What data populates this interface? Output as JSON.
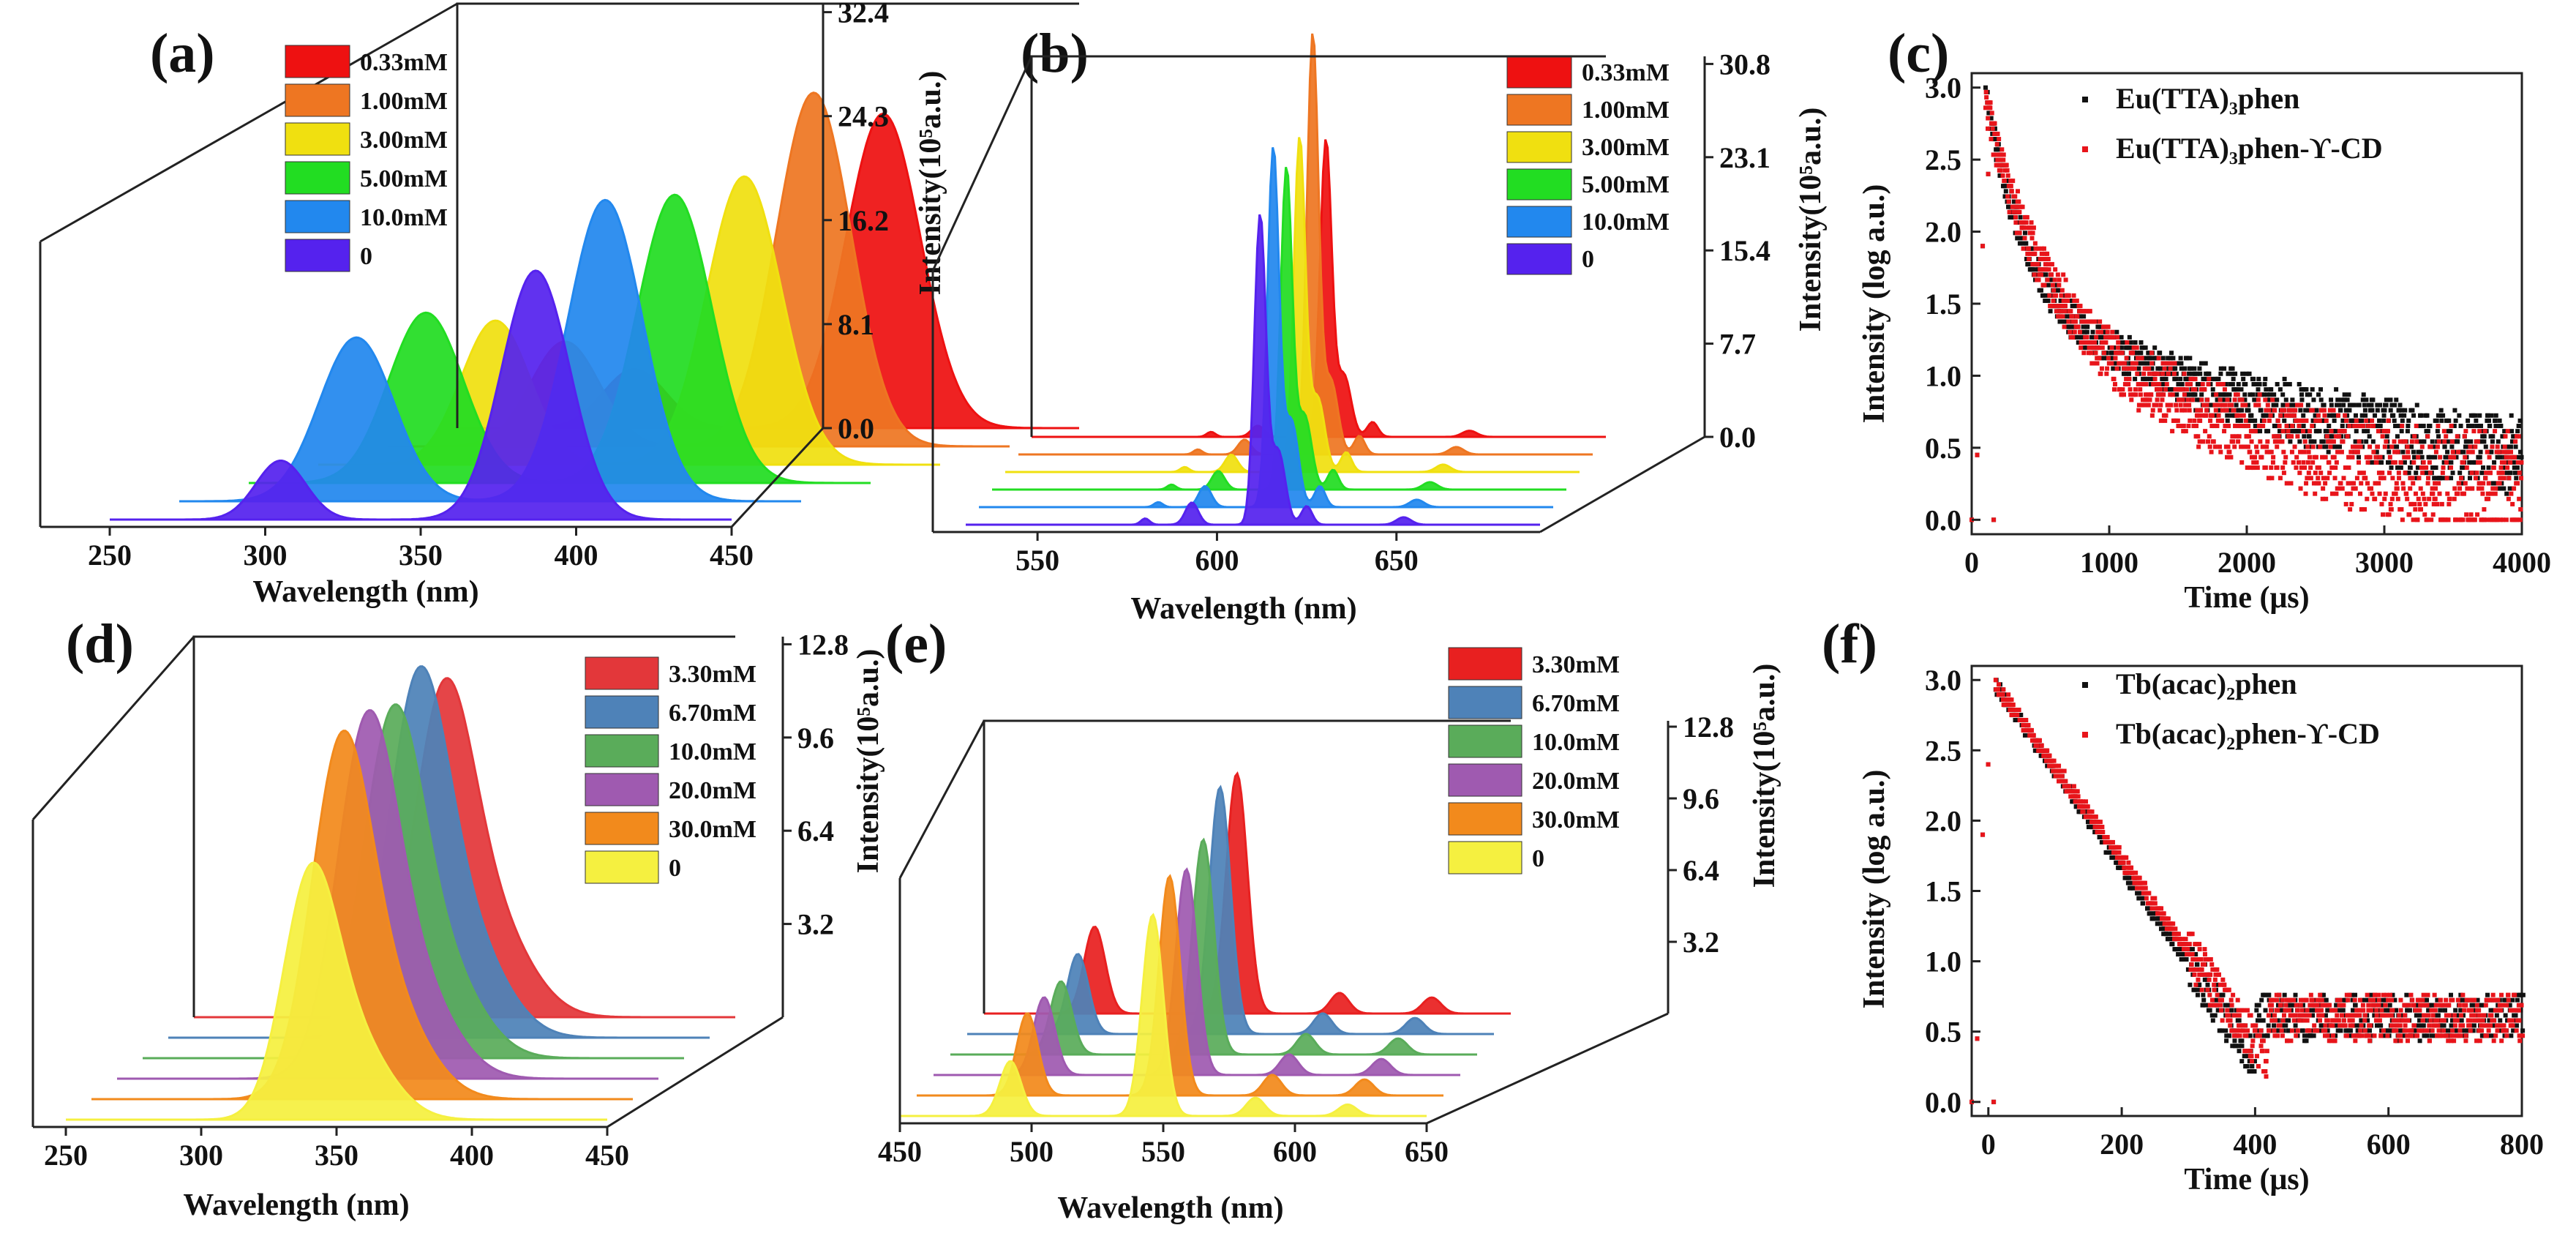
{
  "chart_data": [
    {
      "panel": "(a)",
      "type": "area",
      "style": "waterfall-3d",
      "xlabel": "Wavelength (nm)",
      "zlabel": "Intensity(10⁵a.u.)",
      "xlim": [
        250,
        450
      ],
      "xticks": [
        "250",
        "300",
        "350",
        "400",
        "450"
      ],
      "zticks": [
        "0.0",
        "8.1",
        "16.2",
        "24.3",
        "32.4"
      ],
      "zmax": 32.4,
      "legend": "top-left",
      "series": [
        {
          "name": "0.33mM",
          "color": "#ee1111",
          "peaks": [
            {
              "c": 307,
              "w": 10,
              "h": 4.5
            },
            {
              "c": 387,
              "w": 12,
              "h": 24
            }
          ]
        },
        {
          "name": "1.00mM",
          "color": "#ee7622",
          "peaks": [
            {
              "c": 307,
              "w": 11,
              "h": 8
            },
            {
              "c": 387,
              "w": 12,
              "h": 27
            }
          ]
        },
        {
          "name": "3.00mM",
          "color": "#f0e010",
          "peaks": [
            {
              "c": 307,
              "w": 11,
              "h": 11
            },
            {
              "c": 387,
              "w": 12,
              "h": 22
            }
          ]
        },
        {
          "name": "5.00mM",
          "color": "#22dd22",
          "peaks": [
            {
              "c": 307,
              "w": 12,
              "h": 13
            },
            {
              "c": 387,
              "w": 12,
              "h": 22
            }
          ]
        },
        {
          "name": "10.0mM",
          "color": "#2288ee",
          "peaks": [
            {
              "c": 307,
              "w": 12,
              "h": 12.5
            },
            {
              "c": 387,
              "w": 12,
              "h": 23
            }
          ]
        },
        {
          "name": "0",
          "color": "#5522ee",
          "peaks": [
            {
              "c": 305,
              "w": 8,
              "h": 4.5
            },
            {
              "c": 387,
              "w": 11,
              "h": 19
            }
          ]
        }
      ]
    },
    {
      "panel": "(b)",
      "type": "area",
      "style": "waterfall-3d",
      "xlabel": "Wavelength (nm)",
      "zlabel": "Intensity(10⁵a.u.)",
      "xlim": [
        530,
        690
      ],
      "xticks": [
        "550",
        "600",
        "650"
      ],
      "zticks": [
        "0.0",
        "7.7",
        "15.4",
        "23.1",
        "30.8"
      ],
      "zmax": 30.8,
      "legend": "top-right",
      "series": [
        {
          "name": "0.33mM",
          "color": "#ee1111",
          "peaks": [
            {
              "c": 580,
              "w": 1.2,
              "h": 0.4
            },
            {
              "c": 593,
              "w": 1.8,
              "h": 0.9
            },
            {
              "c": 612,
              "w": 1.6,
              "h": 24
            },
            {
              "c": 617,
              "w": 2,
              "h": 5
            },
            {
              "c": 625,
              "w": 1.5,
              "h": 1.2
            },
            {
              "c": 652,
              "w": 2,
              "h": 0.5
            }
          ]
        },
        {
          "name": "1.00mM",
          "color": "#ee7622",
          "peaks": [
            {
              "c": 580,
              "w": 1.2,
              "h": 0.4
            },
            {
              "c": 593,
              "w": 1.8,
              "h": 1.2
            },
            {
              "c": 612,
              "w": 1.6,
              "h": 34
            },
            {
              "c": 617,
              "w": 2,
              "h": 6
            },
            {
              "c": 625,
              "w": 1.5,
              "h": 1.5
            },
            {
              "c": 652,
              "w": 2,
              "h": 0.6
            }
          ]
        },
        {
          "name": "3.00mM",
          "color": "#f0e010",
          "peaks": [
            {
              "c": 580,
              "w": 1.2,
              "h": 0.4
            },
            {
              "c": 593,
              "w": 1.8,
              "h": 1.4
            },
            {
              "c": 612,
              "w": 1.6,
              "h": 27
            },
            {
              "c": 617,
              "w": 2,
              "h": 6
            },
            {
              "c": 625,
              "w": 1.5,
              "h": 1.6
            },
            {
              "c": 652,
              "w": 2,
              "h": 0.6
            }
          ]
        },
        {
          "name": "5.00mM",
          "color": "#22dd22",
          "peaks": [
            {
              "c": 580,
              "w": 1.2,
              "h": 0.4
            },
            {
              "c": 593,
              "w": 1.8,
              "h": 1.5
            },
            {
              "c": 612,
              "w": 1.6,
              "h": 26
            },
            {
              "c": 617,
              "w": 2,
              "h": 6
            },
            {
              "c": 625,
              "w": 1.5,
              "h": 1.6
            },
            {
              "c": 652,
              "w": 2,
              "h": 0.6
            }
          ]
        },
        {
          "name": "10.0mM",
          "color": "#2288ee",
          "peaks": [
            {
              "c": 580,
              "w": 1.2,
              "h": 0.4
            },
            {
              "c": 593,
              "w": 1.8,
              "h": 1.7
            },
            {
              "c": 612,
              "w": 1.6,
              "h": 29
            },
            {
              "c": 617,
              "w": 2,
              "h": 7
            },
            {
              "c": 625,
              "w": 1.5,
              "h": 1.7
            },
            {
              "c": 652,
              "w": 2,
              "h": 0.6
            }
          ]
        },
        {
          "name": "0",
          "color": "#5522ee",
          "peaks": [
            {
              "c": 580,
              "w": 1.2,
              "h": 0.5
            },
            {
              "c": 593,
              "w": 1.8,
              "h": 1.8
            },
            {
              "c": 612,
              "w": 1.6,
              "h": 25
            },
            {
              "c": 617,
              "w": 2,
              "h": 6
            },
            {
              "c": 625,
              "w": 1.5,
              "h": 1.5
            },
            {
              "c": 652,
              "w": 2,
              "h": 0.6
            }
          ]
        }
      ]
    },
    {
      "panel": "(c)",
      "type": "scatter",
      "xlabel": "Time (μs)",
      "ylabel": "Intensity (log a.u.)",
      "xlim": [
        0,
        4000
      ],
      "ylim": [
        -0.1,
        3.1
      ],
      "xticks": [
        0,
        1000,
        2000,
        3000,
        4000
      ],
      "yticks": [
        0.0,
        0.5,
        1.0,
        1.5,
        2.0,
        2.5,
        3.0
      ],
      "legend": "top-right",
      "series": [
        {
          "name": "Eu(TTA)₃phen",
          "color": "#111111",
          "decay": {
            "x0": 100,
            "y0": 3.0,
            "a1": 1.5,
            "t1": 280,
            "a2": 1.6,
            "t2": 3500,
            "floor": 0.0,
            "step": 0.0362,
            "spread": 0.09
          }
        },
        {
          "name": "Eu(TTA)₃phen-ϒ-CD",
          "color": "#e8141a",
          "decay": {
            "x0": 100,
            "y0": 3.0,
            "a1": 1.3,
            "t1": 380,
            "a2": 1.7,
            "t2": 2200,
            "floor": 0.0,
            "step": 0.0362,
            "spread": 0.13
          }
        }
      ]
    },
    {
      "panel": "(d)",
      "type": "area",
      "style": "waterfall-3d",
      "xlabel": "Wavelength (nm)",
      "zlabel": "Intensity(10⁵a.u.)",
      "xlim": [
        250,
        450
      ],
      "xticks": [
        "250",
        "300",
        "350",
        "400",
        "450"
      ],
      "zticks": [
        "3.2",
        "6.4",
        "9.6",
        "12.8"
      ],
      "zmax": 12.8,
      "legend": "top-right",
      "series": [
        {
          "name": "3.30mM",
          "color": "#e3373a",
          "peaks": [
            {
              "c": 342,
              "w": 11,
              "h": 10
            },
            {
              "c": 360,
              "w": 14,
              "h": 3
            }
          ]
        },
        {
          "name": "6.70mM",
          "color": "#4e82b8",
          "peaks": [
            {
              "c": 342,
              "w": 11,
              "h": 11
            },
            {
              "c": 360,
              "w": 14,
              "h": 3.2
            }
          ]
        },
        {
          "name": "10.0mM",
          "color": "#5aac5a",
          "peaks": [
            {
              "c": 342,
              "w": 11,
              "h": 10.5
            },
            {
              "c": 360,
              "w": 14,
              "h": 3
            }
          ]
        },
        {
          "name": "20.0mM",
          "color": "#9f5ab0",
          "peaks": [
            {
              "c": 342,
              "w": 11,
              "h": 11
            },
            {
              "c": 360,
              "w": 14,
              "h": 3
            }
          ]
        },
        {
          "name": "30.0mM",
          "color": "#f28a1c",
          "peaks": [
            {
              "c": 342,
              "w": 11,
              "h": 11
            },
            {
              "c": 360,
              "w": 14,
              "h": 3
            }
          ]
        },
        {
          "name": "0",
          "color": "#f5f040",
          "peaks": [
            {
              "c": 340,
              "w": 10,
              "h": 7.5
            },
            {
              "c": 357,
              "w": 13,
              "h": 2.5
            }
          ]
        }
      ]
    },
    {
      "panel": "(e)",
      "type": "area",
      "style": "waterfall-3d",
      "xlabel": "Wavelength (nm)",
      "zlabel": "Intensity(10⁵a.u.)",
      "xlim": [
        450,
        650
      ],
      "xticks": [
        "450",
        "500",
        "550",
        "600",
        "650"
      ],
      "zticks": [
        "3.2",
        "6.4",
        "9.6",
        "12.8"
      ],
      "zmax": 12.8,
      "legend": "top-right",
      "series": [
        {
          "name": "3.30mM",
          "color": "#e82020",
          "peaks": [
            {
              "c": 492,
              "w": 4,
              "h": 3.8
            },
            {
              "c": 546,
              "w": 4,
              "h": 10.5
            },
            {
              "c": 585,
              "w": 3.5,
              "h": 0.9
            },
            {
              "c": 620,
              "w": 3.5,
              "h": 0.7
            }
          ]
        },
        {
          "name": "6.70mM",
          "color": "#4e82b8",
          "peaks": [
            {
              "c": 492,
              "w": 4,
              "h": 3.5
            },
            {
              "c": 546,
              "w": 4,
              "h": 10.8
            },
            {
              "c": 585,
              "w": 3.5,
              "h": 0.9
            },
            {
              "c": 620,
              "w": 3.5,
              "h": 0.7
            }
          ]
        },
        {
          "name": "10.0mM",
          "color": "#5aac5a",
          "peaks": [
            {
              "c": 492,
              "w": 4,
              "h": 3.2
            },
            {
              "c": 546,
              "w": 4,
              "h": 9.4
            },
            {
              "c": 585,
              "w": 3.5,
              "h": 0.9
            },
            {
              "c": 620,
              "w": 3.5,
              "h": 0.7
            }
          ]
        },
        {
          "name": "20.0mM",
          "color": "#9f5ab0",
          "peaks": [
            {
              "c": 492,
              "w": 4,
              "h": 3.4
            },
            {
              "c": 546,
              "w": 4,
              "h": 9
            },
            {
              "c": 585,
              "w": 3.5,
              "h": 0.9
            },
            {
              "c": 620,
              "w": 3.5,
              "h": 0.7
            }
          ]
        },
        {
          "name": "30.0mM",
          "color": "#f28a1c",
          "peaks": [
            {
              "c": 492,
              "w": 4,
              "h": 3.6
            },
            {
              "c": 546,
              "w": 4,
              "h": 9.6
            },
            {
              "c": 585,
              "w": 3.5,
              "h": 0.9
            },
            {
              "c": 620,
              "w": 3.5,
              "h": 0.7
            }
          ]
        },
        {
          "name": "0",
          "color": "#f5f040",
          "peaks": [
            {
              "c": 492,
              "w": 4,
              "h": 2.4
            },
            {
              "c": 546,
              "w": 4,
              "h": 8.8
            },
            {
              "c": 585,
              "w": 3.5,
              "h": 0.8
            },
            {
              "c": 620,
              "w": 3.5,
              "h": 0.5
            }
          ]
        }
      ]
    },
    {
      "panel": "(f)",
      "type": "scatter",
      "xlabel": "Time (μs)",
      "ylabel": "Intensity (log a.u.)",
      "xlim": [
        -25,
        800
      ],
      "ylim": [
        -0.1,
        3.1
      ],
      "xticks": [
        0,
        200,
        400,
        600,
        800
      ],
      "yticks": [
        0.0,
        0.5,
        1.0,
        1.5,
        2.0,
        2.5,
        3.0
      ],
      "legend": "top-right",
      "series": [
        {
          "name": "Tb(acac)₂phen",
          "color": "#111111",
          "decay": {
            "x0": 10,
            "y0": 2.97,
            "slope": 0.00685,
            "x1": 400,
            "floor": 0.6,
            "step": 0.0362,
            "spread": 0.05
          }
        },
        {
          "name": "Tb(acac)₂phen-ϒ-CD",
          "color": "#e8141a",
          "decay": {
            "x0": 10,
            "y0": 2.97,
            "slope": 0.00655,
            "x1": 420,
            "floor": 0.6,
            "step": 0.0362,
            "spread": 0.05
          }
        }
      ]
    }
  ]
}
